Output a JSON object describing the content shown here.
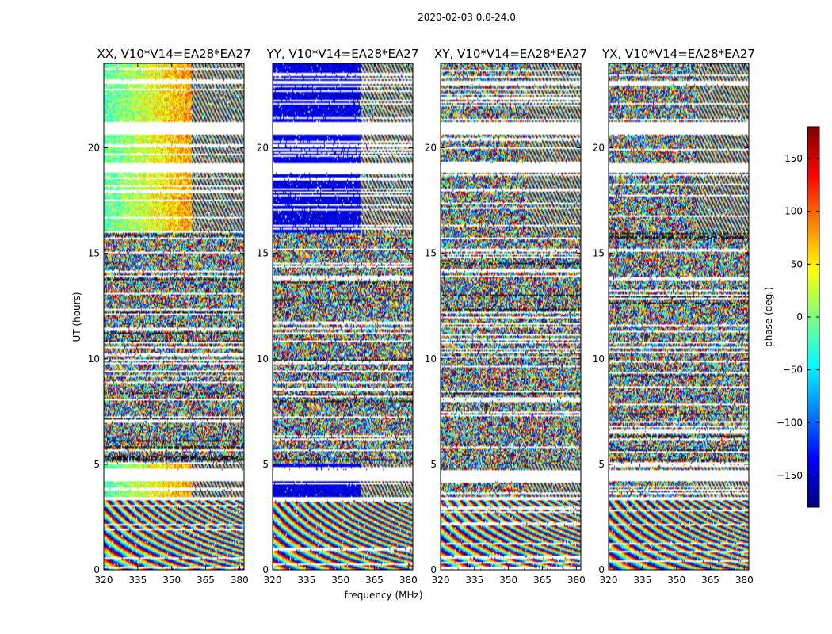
{
  "chart_data": {
    "type": "heatmap",
    "title": "2020-02-03 0.0-24.0",
    "xlabel": "frequency (MHz)",
    "ylabel": "UT (hours)",
    "colorbar_label": "phase (deg.)",
    "colorbar_range": [
      -180,
      180
    ],
    "colorbar_ticks": [
      "150",
      "100",
      "50",
      "0",
      "−50",
      "−100",
      "−150"
    ],
    "colorbar_tick_values": [
      150,
      100,
      50,
      0,
      -50,
      -100,
      -150
    ],
    "colormap": "jet",
    "xlim": [
      320,
      382
    ],
    "ylim": [
      0,
      24
    ],
    "x_ticks": [
      "320",
      "335",
      "350",
      "365",
      "380"
    ],
    "x_tick_values": [
      320,
      335,
      350,
      365,
      380
    ],
    "y_ticks": [
      "0",
      "5",
      "10",
      "15",
      "20"
    ],
    "y_tick_values": [
      0,
      5,
      10,
      15,
      20
    ],
    "gaps_hours": [
      [
        3.3,
        3.45
      ],
      [
        4.2,
        4.7
      ],
      [
        18.8,
        19.3
      ],
      [
        20.6,
        21.2
      ],
      [
        23.0,
        23.2
      ]
    ],
    "panels": [
      {
        "title": "XX, V10*V14=EA28*EA27",
        "pol": "XX"
      },
      {
        "title": "YY, V10*V14=EA28*EA27",
        "pol": "YY"
      },
      {
        "title": "XY, V10*V14=EA28*EA27",
        "pol": "XY"
      },
      {
        "title": "YX, V10*V14=EA28*EA27",
        "pol": "YX"
      }
    ]
  }
}
